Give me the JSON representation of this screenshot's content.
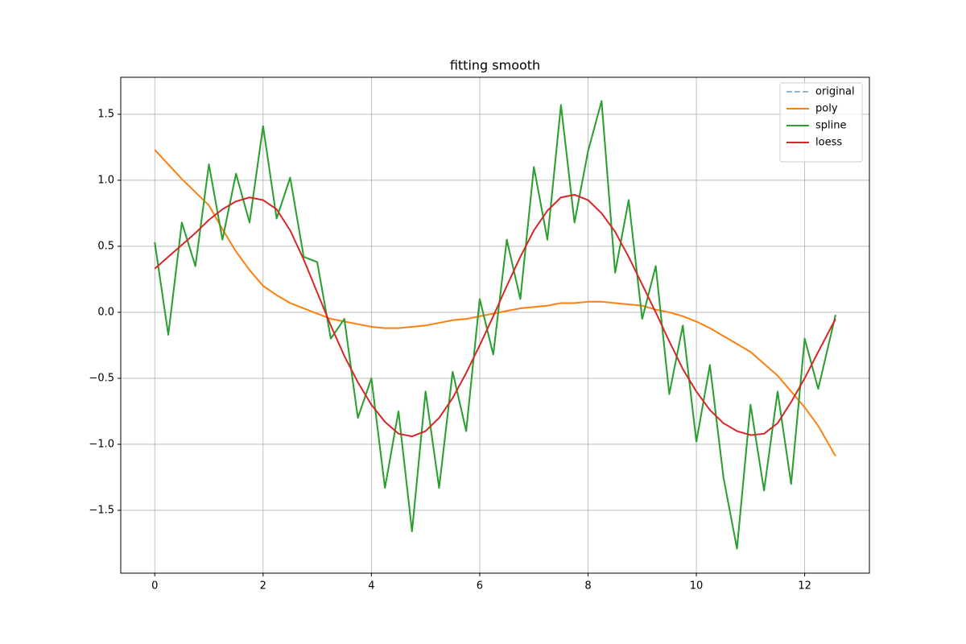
{
  "chart_data": {
    "type": "line",
    "title": "fitting smooth",
    "x": [
      0,
      0.25,
      0.5,
      0.75,
      1,
      1.25,
      1.5,
      1.75,
      2,
      2.25,
      2.5,
      2.75,
      3,
      3.25,
      3.5,
      3.75,
      4,
      4.25,
      4.5,
      4.75,
      5,
      5.25,
      5.5,
      5.75,
      6,
      6.25,
      6.5,
      6.75,
      7,
      7.25,
      7.5,
      7.75,
      8,
      8.25,
      8.5,
      8.75,
      9,
      9.25,
      9.5,
      9.75,
      10,
      10.25,
      10.5,
      10.75,
      11,
      11.25,
      11.5,
      11.75,
      12,
      12.25,
      12.57
    ],
    "series": [
      {
        "name": "original",
        "color": "#1f77b4",
        "dashed": true,
        "values": [
          0.53,
          -0.17,
          0.68,
          0.35,
          1.12,
          0.55,
          1.05,
          0.68,
          1.41,
          0.71,
          1.02,
          0.42,
          0.38,
          -0.2,
          -0.05,
          -0.8,
          -0.5,
          -1.33,
          -0.75,
          -1.66,
          -0.6,
          -1.33,
          -0.45,
          -0.9,
          0.1,
          -0.32,
          0.55,
          0.1,
          1.1,
          0.55,
          1.57,
          0.68,
          1.22,
          1.6,
          0.3,
          0.85,
          -0.05,
          0.35,
          -0.62,
          -0.1,
          -0.98,
          -0.4,
          -1.25,
          -1.79,
          -0.7,
          -1.35,
          -0.6,
          -1.3,
          -0.2,
          -0.58,
          -0.02
        ]
      },
      {
        "name": "poly",
        "color": "#ff7f0e",
        "values": [
          1.23,
          1.12,
          1.01,
          0.91,
          0.81,
          0.63,
          0.46,
          0.32,
          0.2,
          0.13,
          0.07,
          0.03,
          -0.01,
          -0.05,
          -0.07,
          -0.09,
          -0.11,
          -0.12,
          -0.12,
          -0.11,
          -0.1,
          -0.08,
          -0.06,
          -0.05,
          -0.03,
          -0.01,
          0.01,
          0.03,
          0.04,
          0.05,
          0.07,
          0.07,
          0.08,
          0.08,
          0.07,
          0.06,
          0.05,
          0.02,
          0,
          -0.03,
          -0.07,
          -0.12,
          -0.18,
          -0.24,
          -0.3,
          -0.39,
          -0.48,
          -0.6,
          -0.72,
          -0.86,
          -1.09
        ]
      },
      {
        "name": "spline",
        "color": "#2ca02c",
        "values": [
          0.53,
          -0.17,
          0.68,
          0.35,
          1.12,
          0.55,
          1.05,
          0.68,
          1.41,
          0.71,
          1.02,
          0.42,
          0.38,
          -0.2,
          -0.05,
          -0.8,
          -0.5,
          -1.33,
          -0.75,
          -1.66,
          -0.6,
          -1.33,
          -0.45,
          -0.9,
          0.1,
          -0.32,
          0.55,
          0.1,
          1.1,
          0.55,
          1.57,
          0.68,
          1.22,
          1.6,
          0.3,
          0.85,
          -0.05,
          0.35,
          -0.62,
          -0.1,
          -0.98,
          -0.4,
          -1.25,
          -1.79,
          -0.7,
          -1.35,
          -0.6,
          -1.3,
          -0.2,
          -0.58,
          -0.02
        ]
      },
      {
        "name": "loess",
        "color": "#d62728",
        "values": [
          0.33,
          0.42,
          0.51,
          0.6,
          0.7,
          0.78,
          0.84,
          0.87,
          0.85,
          0.78,
          0.62,
          0.4,
          0.15,
          -0.1,
          -0.33,
          -0.53,
          -0.7,
          -0.83,
          -0.92,
          -0.94,
          -0.9,
          -0.8,
          -0.65,
          -0.46,
          -0.25,
          -0.03,
          0.2,
          0.42,
          0.62,
          0.77,
          0.87,
          0.89,
          0.85,
          0.75,
          0.61,
          0.42,
          0.21,
          0,
          -0.22,
          -0.43,
          -0.6,
          -0.74,
          -0.84,
          -0.9,
          -0.93,
          -0.92,
          -0.84,
          -0.68,
          -0.5,
          -0.3,
          -0.05
        ]
      }
    ],
    "xlim": [
      -0.628,
      13.195
    ],
    "ylim": [
      -1.976,
      1.78
    ],
    "xticks": [
      0,
      2,
      4,
      6,
      8,
      10,
      12
    ],
    "yticks": [
      {
        "value": 1.5,
        "label": "1.5"
      },
      {
        "value": 1,
        "label": "1.0"
      },
      {
        "value": 0.5,
        "label": "0.5"
      },
      {
        "value": 0,
        "label": "0.0"
      },
      {
        "value": -0.5,
        "label": "−0.5"
      },
      {
        "value": -1,
        "label": "−1.0"
      },
      {
        "value": -1.5,
        "label": "−1.5"
      }
    ],
    "grid": true,
    "legend": "upper-right"
  }
}
